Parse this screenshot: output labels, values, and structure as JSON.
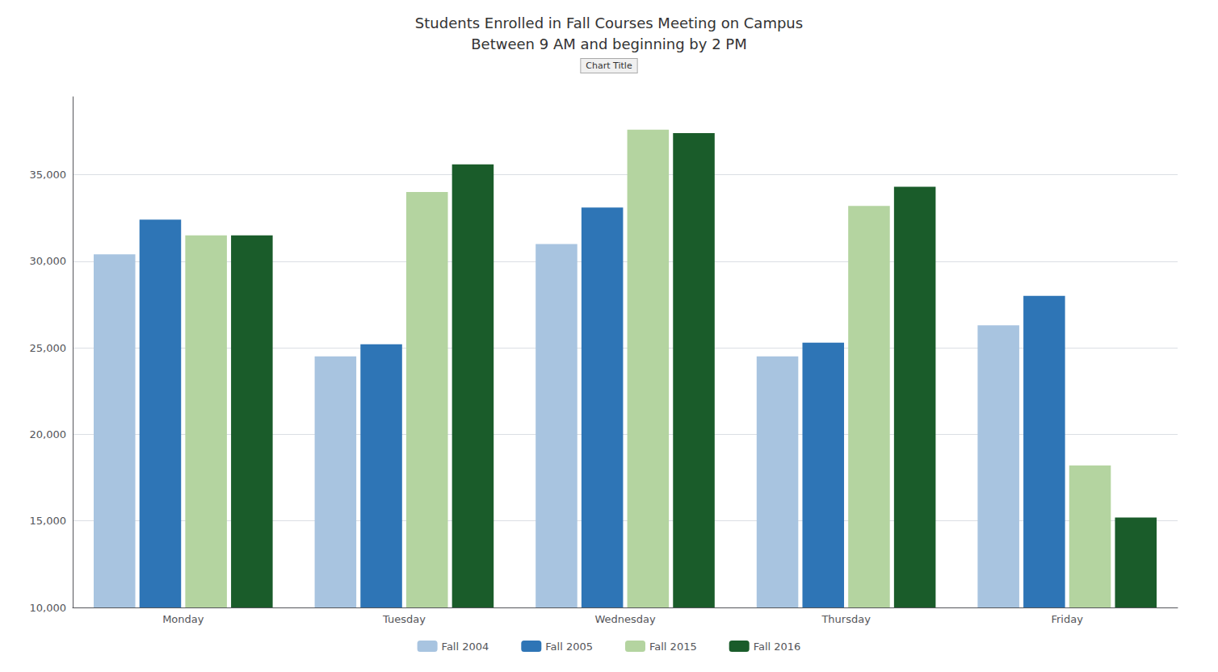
{
  "chart_data": {
    "type": "bar",
    "title": "Students Enrolled in Fall Courses Meeting on Campus",
    "subtitle": "Between 9 AM and beginning by 2 PM",
    "annotations": [
      "Chart Title"
    ],
    "categories": [
      "Monday",
      "Tuesday",
      "Wednesday",
      "Thursday",
      "Friday"
    ],
    "series": [
      {
        "name": "Fall 2004",
        "color": "#a8c4e0",
        "values": [
          30400,
          24500,
          31000,
          24500,
          26300
        ]
      },
      {
        "name": "Fall 2005",
        "color": "#2e75b6",
        "values": [
          32400,
          25200,
          33100,
          25300,
          28000
        ]
      },
      {
        "name": "Fall 2015",
        "color": "#b4d4a0",
        "values": [
          31500,
          34000,
          37600,
          33200,
          18200
        ]
      },
      {
        "name": "Fall 2016",
        "color": "#1a5c2a",
        "values": [
          31500,
          35600,
          37400,
          34300,
          15200
        ]
      }
    ],
    "ylim": [
      10000,
      39500
    ],
    "yticks": [
      {
        "value": 10000,
        "label": "10,000"
      },
      {
        "value": 15000,
        "label": "15,000"
      },
      {
        "value": 20000,
        "label": "20,000"
      },
      {
        "value": 25000,
        "label": "25,000"
      },
      {
        "value": 30000,
        "label": "30,000"
      },
      {
        "value": 35000,
        "label": "35,000"
      }
    ],
    "grid": true,
    "legend": "bottom"
  }
}
